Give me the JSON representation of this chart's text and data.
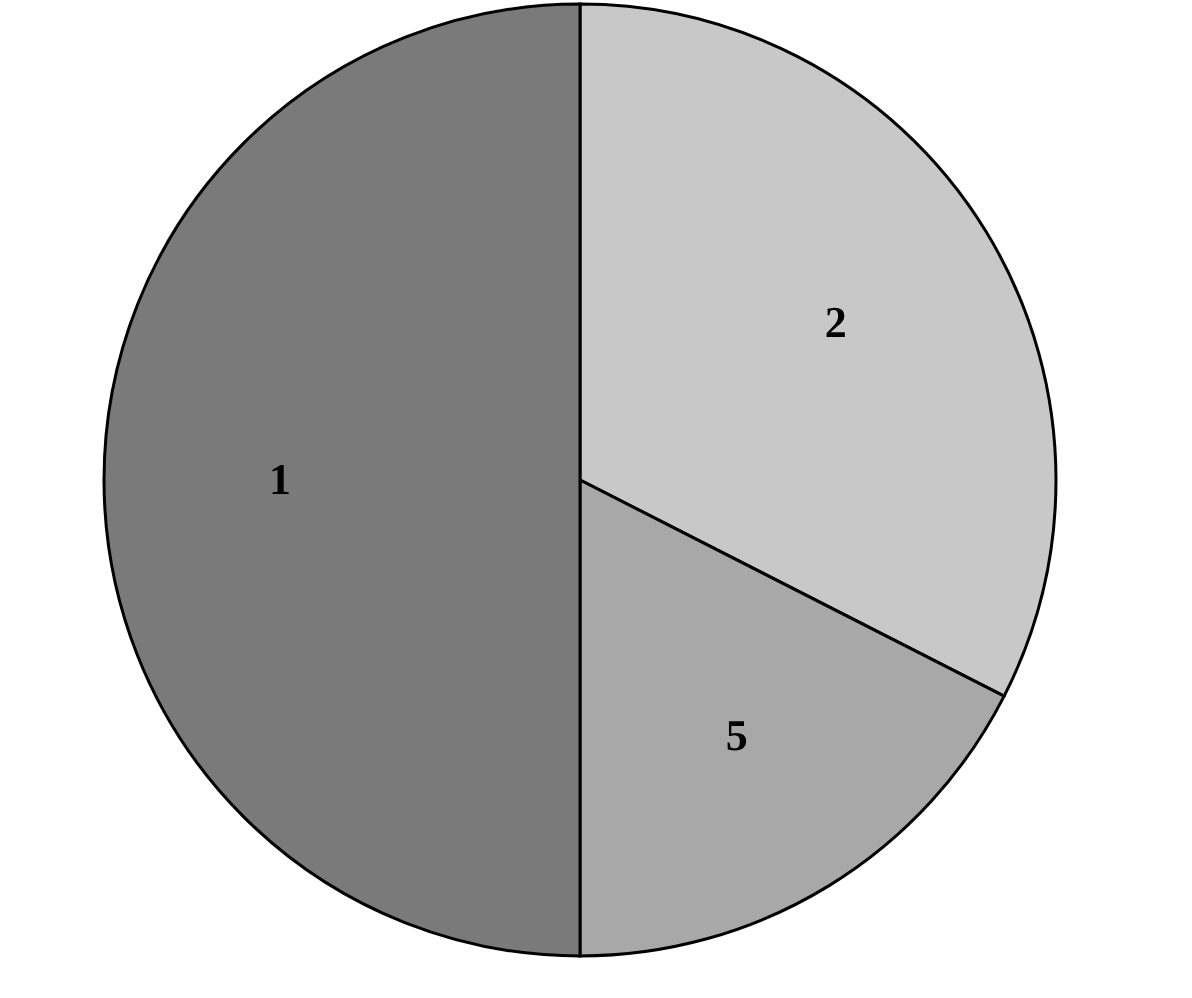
{
  "chart_data": {
    "type": "pie",
    "categories": [
      "2",
      "5",
      "1"
    ],
    "values": [
      32.5,
      17.5,
      50
    ],
    "colors": [
      "#c8c8c8",
      "#a8a8a8",
      "#7a7a7a"
    ]
  }
}
